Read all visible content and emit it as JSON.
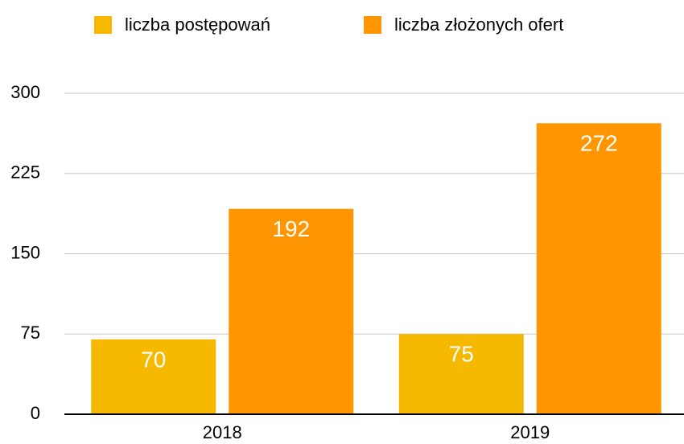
{
  "chart_data": {
    "type": "bar",
    "categories": [
      "2018",
      "2019"
    ],
    "series": [
      {
        "name": "liczba postępowań",
        "color": "#f6b900",
        "values": [
          70,
          75
        ]
      },
      {
        "name": "liczba złożonych ofert",
        "color": "#ff9500",
        "values": [
          192,
          272
        ]
      }
    ],
    "ylim": [
      0,
      300
    ],
    "yticks": [
      0,
      75,
      150,
      225,
      300
    ],
    "grid": true,
    "legend": "top"
  }
}
